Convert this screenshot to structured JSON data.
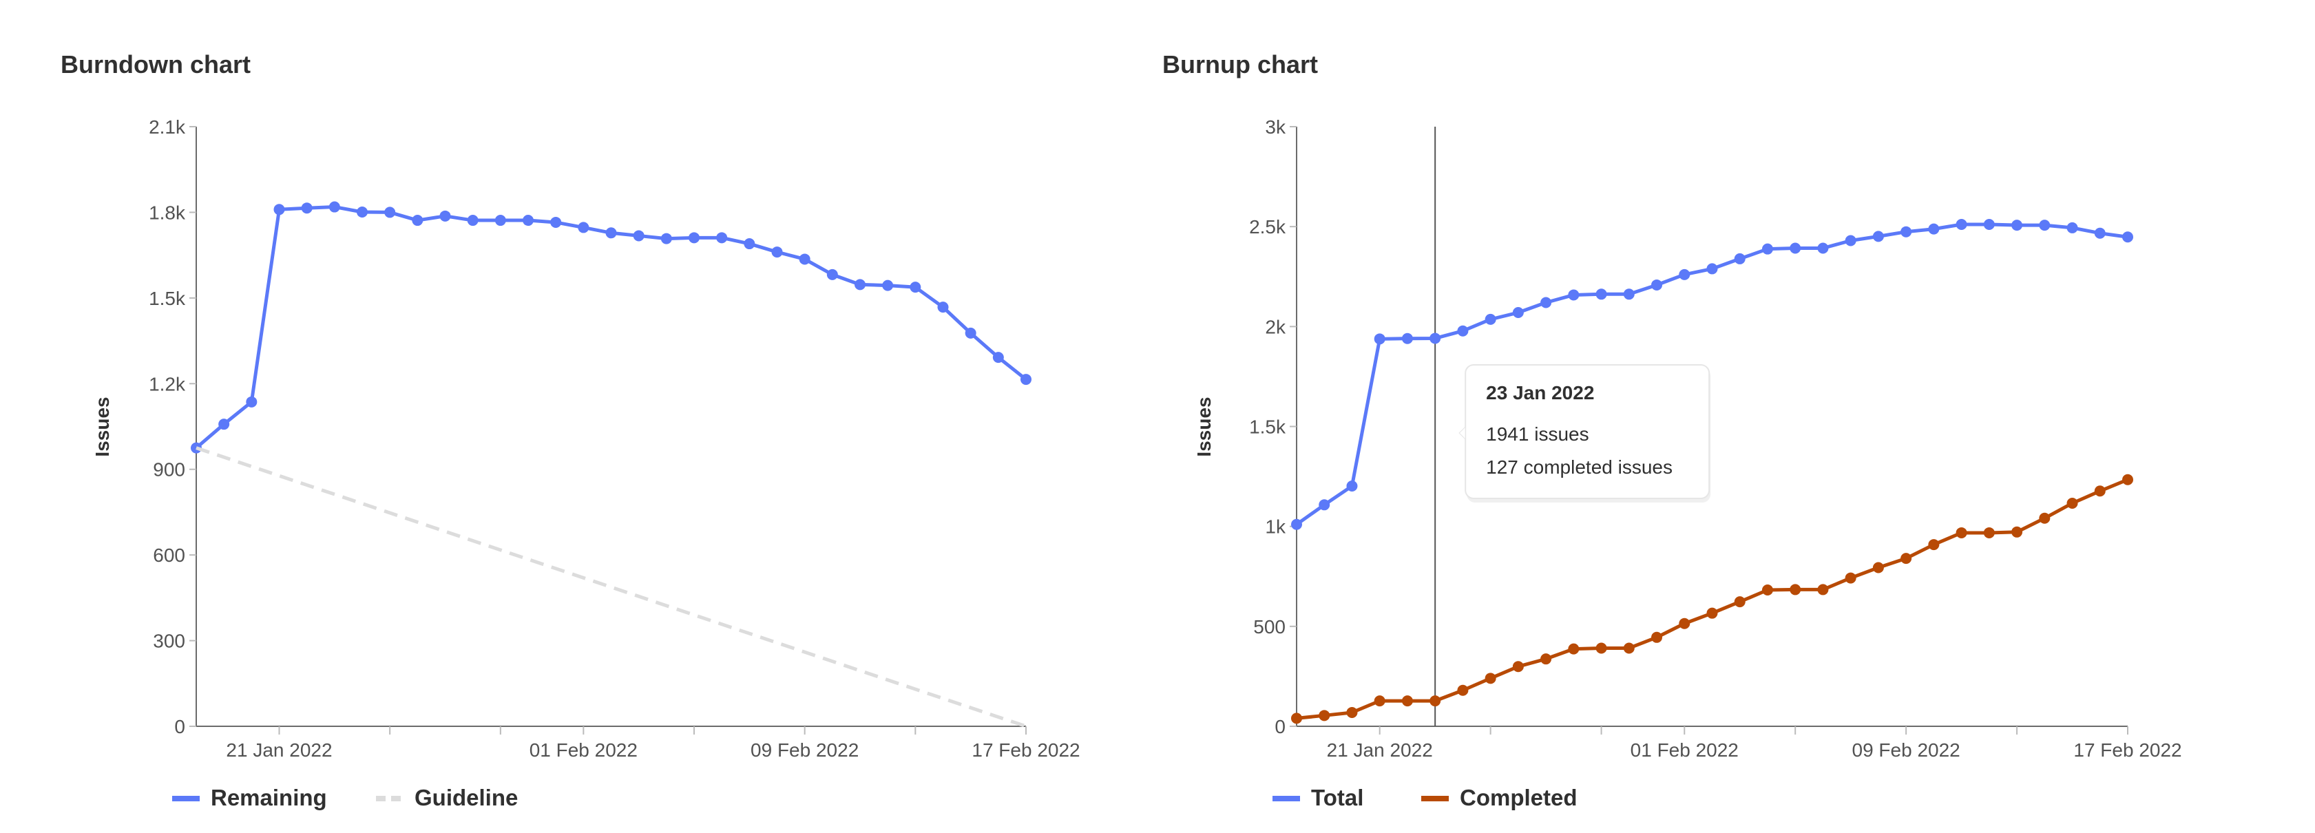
{
  "chart_data": [
    {
      "type": "line",
      "title": "Burndown chart",
      "ylabel": "Issues",
      "xlabel": "",
      "ylim": [
        0,
        2100
      ],
      "y_ticks": [
        "0",
        "300",
        "600",
        "900",
        "1.2k",
        "1.5k",
        "1.8k",
        "2.1k"
      ],
      "y_tick_values": [
        0,
        300,
        600,
        900,
        1200,
        1500,
        1800,
        2100
      ],
      "x_start": "2022-01-18",
      "x_end": "2022-02-17",
      "x_tick_labels": [
        "21 Jan 2022",
        "01 Feb 2022",
        "09 Feb 2022",
        "17 Feb 2022"
      ],
      "x_tick_dates": [
        "2022-01-21",
        "2022-02-01",
        "2022-02-09",
        "2022-02-17"
      ],
      "x_minor_tick_dates": [
        "2022-01-25",
        "2022-01-29",
        "2022-02-05",
        "2022-02-13"
      ],
      "legend_position": "bottom-left",
      "series": [
        {
          "name": "Remaining",
          "color": "#5b79f8",
          "style": "solid",
          "values": [
            975,
            1058,
            1136,
            1810,
            1815,
            1819,
            1801,
            1800,
            1772,
            1787,
            1772,
            1772,
            1772,
            1765,
            1747,
            1728,
            1718,
            1708,
            1711,
            1711,
            1690,
            1661,
            1636,
            1582,
            1547,
            1544,
            1538,
            1468,
            1377,
            1292,
            1215
          ]
        },
        {
          "name": "Guideline",
          "color": "#dcdcdc",
          "style": "dashed",
          "x": [
            "2022-01-18",
            "2022-02-17"
          ],
          "values": [
            975,
            0
          ]
        }
      ]
    },
    {
      "type": "line",
      "title": "Burnup chart",
      "ylabel": "Issues",
      "xlabel": "",
      "ylim": [
        0,
        3000
      ],
      "y_ticks": [
        "0",
        "500",
        "1k",
        "1.5k",
        "2k",
        "2.5k",
        "3k"
      ],
      "y_tick_values": [
        0,
        500,
        1000,
        1500,
        2000,
        2500,
        3000
      ],
      "x_start": "2022-01-18",
      "x_end": "2022-02-17",
      "x_tick_labels": [
        "21 Jan 2022",
        "01 Feb 2022",
        "09 Feb 2022",
        "17 Feb 2022"
      ],
      "x_tick_dates": [
        "2022-01-21",
        "2022-02-01",
        "2022-02-09",
        "2022-02-17"
      ],
      "x_minor_tick_dates": [
        "2022-01-25",
        "2022-01-29",
        "2022-02-05",
        "2022-02-13"
      ],
      "legend_position": "bottom-left",
      "series": [
        {
          "name": "Total",
          "color": "#5b79f8",
          "values": [
            1010,
            1108,
            1202,
            1938,
            1940,
            1941,
            1978,
            2036,
            2070,
            2120,
            2158,
            2162,
            2162,
            2208,
            2260,
            2289,
            2339,
            2388,
            2392,
            2392,
            2430,
            2451,
            2474,
            2488,
            2511,
            2511,
            2507,
            2507,
            2494,
            2467,
            2448
          ]
        },
        {
          "name": "Completed",
          "color": "#b84a05",
          "values": [
            40,
            54,
            69,
            127,
            127,
            127,
            180,
            240,
            299,
            337,
            387,
            391,
            391,
            445,
            514,
            566,
            623,
            682,
            684,
            684,
            742,
            794,
            840,
            909,
            968,
            968,
            972,
            1041,
            1116,
            1177,
            1234
          ]
        }
      ],
      "tooltip": {
        "date": "2022-01-23",
        "title": "23 Jan 2022",
        "lines": [
          "1941 issues",
          "127 completed issues"
        ]
      }
    }
  ]
}
